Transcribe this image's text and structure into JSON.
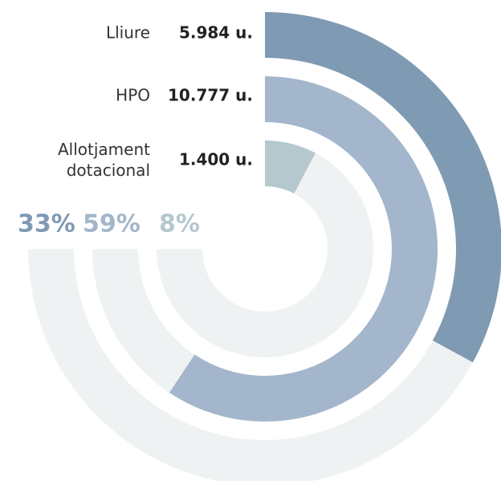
{
  "chart_data": {
    "type": "radial-bar",
    "series": [
      {
        "name": "Lliure",
        "color": "#7f9ab3",
        "values": [
          5984
        ],
        "value_labels": [
          "5.984 u."
        ],
        "share_labels": [
          "33%"
        ]
      },
      {
        "name": "HPO",
        "color": "#a3b6cb",
        "values": [
          10777
        ],
        "value_labels": [
          "10.777 u."
        ],
        "share_labels": [
          "59%"
        ]
      },
      {
        "name": "Allotjament dotacional",
        "color": "#b4c8ce",
        "values": [
          1400
        ],
        "value_labels": [
          "1.400 u."
        ],
        "share_labels": [
          "8%"
        ]
      }
    ],
    "track_color": "#eff2f3"
  }
}
